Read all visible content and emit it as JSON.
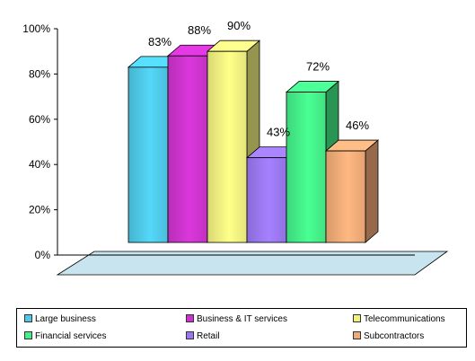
{
  "chart_data": {
    "type": "bar",
    "categories": [
      "Large business",
      "Business & IT services",
      "Telecommunications",
      "Financial services",
      "Retail",
      "Subcontractors"
    ],
    "values": [
      83,
      88,
      90,
      72,
      43,
      46
    ],
    "data_labels": [
      "83%",
      "88%",
      "90%",
      "72%",
      "43%",
      "46%"
    ],
    "bar_order": [
      "Large business",
      "Business & IT services",
      "Telecommunications",
      "Retail",
      "Financial services",
      "Subcontractors"
    ],
    "yticks": [
      "0%",
      "20%",
      "40%",
      "60%",
      "80%",
      "100%"
    ],
    "ylim": [
      0,
      100
    ],
    "style": "3d",
    "legend_position": "bottom",
    "colors": {
      "Large business": "#4ec8e6",
      "Business & IT services": "#cc33cc",
      "Telecommunications": "#f0f080",
      "Financial services": "#44ee88",
      "Retail": "#9977ee",
      "Subcontractors": "#f0aa77"
    },
    "floor_color": "#c8e4ee"
  }
}
